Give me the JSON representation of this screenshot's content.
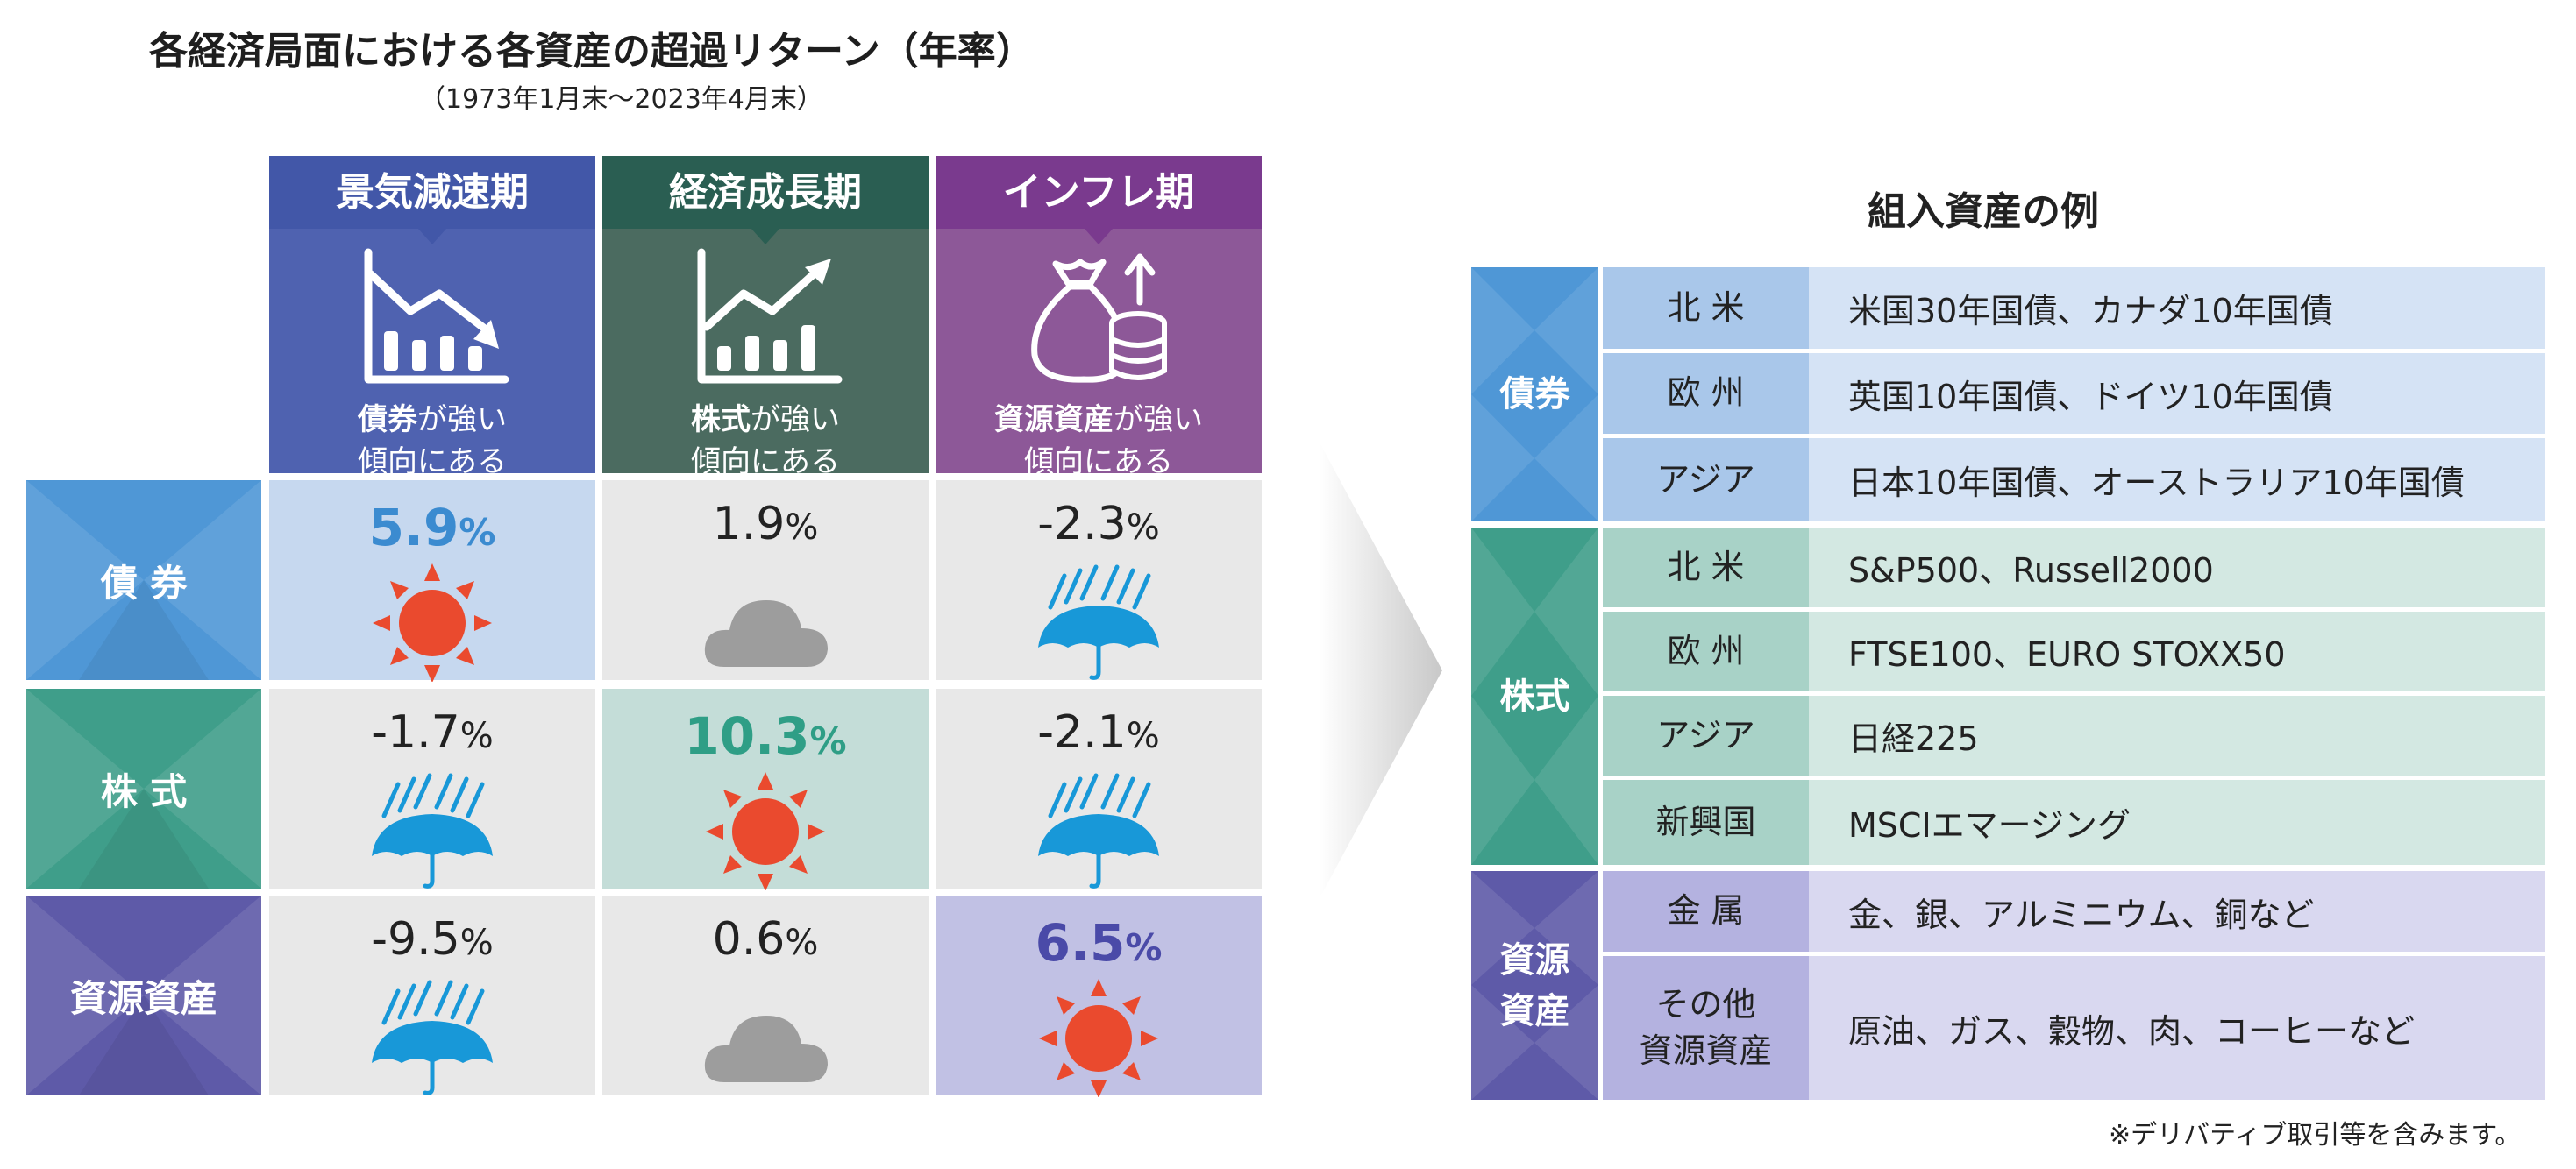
{
  "title": "各経済局面における各資産の超過リターン（年率）",
  "subtitle": "（1973年1月末～2023年4月末）",
  "phases": [
    {
      "label": "景気減速期",
      "caption_bold": "債券",
      "caption_rest": "が強い",
      "caption2": "傾向にある"
    },
    {
      "label": "経済成長期",
      "caption_bold": "株式",
      "caption_rest": "が強い",
      "caption2": "傾向にある"
    },
    {
      "label": "インフレ期",
      "caption_bold": "資源資産",
      "caption_rest": "が強い",
      "caption2": "傾向にある"
    }
  ],
  "assets": [
    "債 券",
    "株 式",
    "資源資産"
  ],
  "returns": [
    [
      {
        "value": "5.9",
        "unit": "%",
        "weather": "sun"
      },
      {
        "value": "1.9",
        "unit": "%",
        "weather": "cloud"
      },
      {
        "value": "-2.3",
        "unit": "%",
        "weather": "rain"
      }
    ],
    [
      {
        "value": "-1.7",
        "unit": "%",
        "weather": "rain"
      },
      {
        "value": "10.3",
        "unit": "%",
        "weather": "sun"
      },
      {
        "value": "-2.1",
        "unit": "%",
        "weather": "rain"
      }
    ],
    [
      {
        "value": "-9.5",
        "unit": "%",
        "weather": "rain"
      },
      {
        "value": "0.6",
        "unit": "%",
        "weather": "cloud"
      },
      {
        "value": "6.5",
        "unit": "%",
        "weather": "sun"
      }
    ]
  ],
  "examples": {
    "title": "組入資産の例",
    "groups": [
      {
        "name": "債券",
        "rows": [
          {
            "region": "北 米",
            "items": "米国30年国債、カナダ10年国債"
          },
          {
            "region": "欧 州",
            "items": "英国10年国債、ドイツ10年国債"
          },
          {
            "region": "アジア",
            "items": "日本10年国債、オーストラリア10年国債"
          }
        ]
      },
      {
        "name": "株式",
        "rows": [
          {
            "region": "北 米",
            "items": "S&P500、Russell2000"
          },
          {
            "region": "欧 州",
            "items": "FTSE100、EURO STOXX50"
          },
          {
            "region": "アジア",
            "items": "日経225"
          },
          {
            "region": "新興国",
            "items": "MSCIエマージング"
          }
        ]
      },
      {
        "name_line1": "資源",
        "name_line2": "資産",
        "rows": [
          {
            "region": "金 属",
            "items": "金、銀、アルミニウム、銅など"
          },
          {
            "region_line1": "その他",
            "region_line2": "資源資産",
            "items": "原油、ガス、穀物、肉、コーヒーなど"
          }
        ]
      }
    ]
  },
  "footnote": "※デリバティブ取引等を含みます。",
  "colors": {
    "bond_header": "#4257a8",
    "bond_body": "#4f62b0",
    "stock_header": "#2a5e52",
    "stock_body": "#4b6b60",
    "resource_header": "#7a3a8e",
    "resource_body": "#8d5898",
    "bond_label": "#4f97d6",
    "stock_label": "#3f9e8a",
    "resource_label": "#5e5aa8",
    "hi_bond_cell": "#c6d8ef",
    "hi_stock_cell": "#c4ddd8",
    "hi_resource_cell": "#c1c1e4",
    "neutral_cell": "#e8e8e8",
    "hi_bond_text": "#3b8bd0",
    "hi_stock_text": "#2f9e86",
    "hi_resource_text": "#4a4aa8",
    "sun": "#ea4a2e",
    "cloud": "#9d9d9d",
    "umbrella": "#1898d8"
  }
}
